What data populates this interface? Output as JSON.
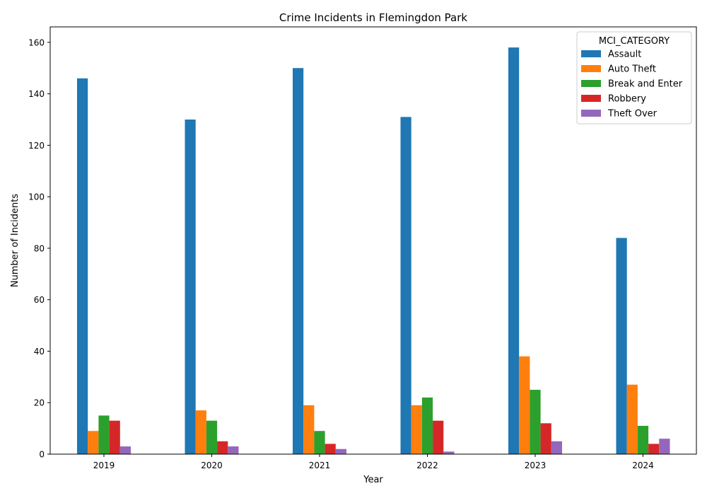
{
  "chart_data": {
    "type": "bar",
    "title": "Crime Incidents in Flemingdon Park",
    "xlabel": "Year",
    "ylabel": "Number of Incidents",
    "categories": [
      "2019",
      "2020",
      "2021",
      "2022",
      "2023",
      "2024"
    ],
    "ylim": [
      0,
      166
    ],
    "yticks": [
      0,
      20,
      40,
      60,
      80,
      100,
      120,
      140,
      160
    ],
    "grid": false,
    "legend": {
      "title": "MCI_CATEGORY",
      "placement": "top-right"
    },
    "series": [
      {
        "name": "Assault",
        "color": "#1f77b4",
        "values": [
          146,
          130,
          150,
          131,
          158,
          84
        ]
      },
      {
        "name": "Auto Theft",
        "color": "#ff7f0e",
        "values": [
          9,
          17,
          19,
          19,
          38,
          27
        ]
      },
      {
        "name": "Break and Enter",
        "color": "#2ca02c",
        "values": [
          15,
          13,
          9,
          22,
          25,
          11
        ]
      },
      {
        "name": "Robbery",
        "color": "#d62728",
        "values": [
          13,
          5,
          4,
          13,
          12,
          4
        ]
      },
      {
        "name": "Theft Over",
        "color": "#9467bd",
        "values": [
          3,
          3,
          2,
          1,
          5,
          6
        ]
      }
    ]
  }
}
